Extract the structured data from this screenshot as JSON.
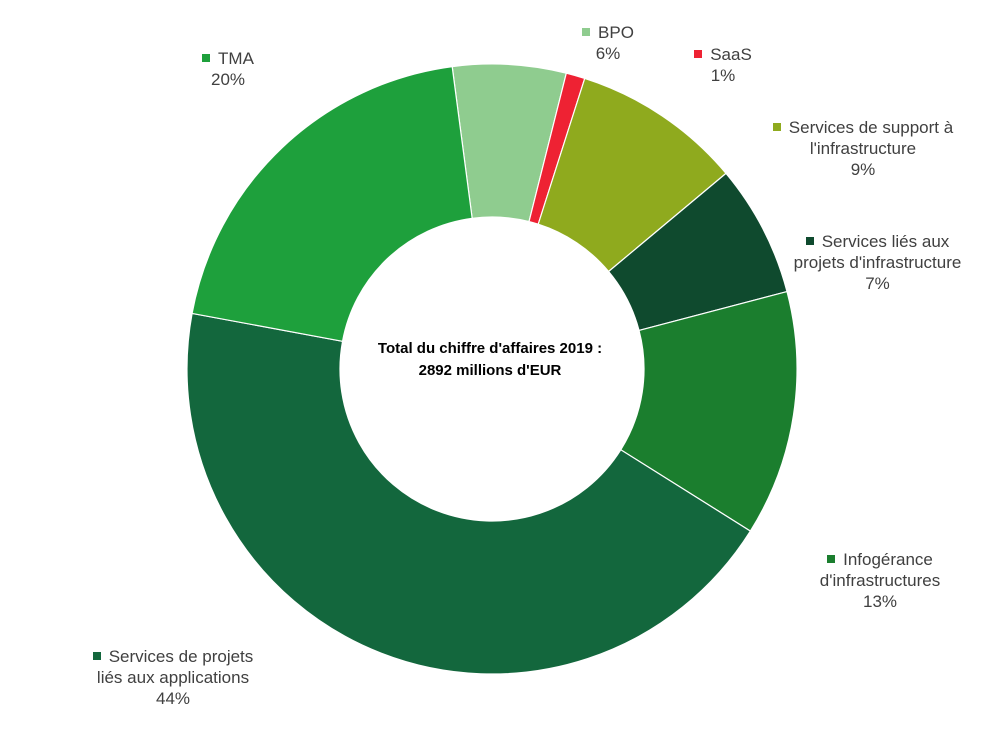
{
  "chart_data": {
    "type": "pie",
    "donut": true,
    "center_label_line1": "Total du chiffre d'affaires 2019 :",
    "center_label_line2": "2892 millions d'EUR",
    "slices": [
      {
        "name": "BPO",
        "value": 6,
        "label": "6%",
        "color": "#8fcc8f",
        "name_lines": [
          "BPO"
        ]
      },
      {
        "name": "SaaS",
        "value": 1,
        "label": "1%",
        "color": "#ee2233",
        "name_lines": [
          "SaaS"
        ]
      },
      {
        "name": "Services de support à l'infrastructure",
        "value": 9,
        "label": "9%",
        "color": "#8faa1e",
        "name_lines": [
          "Services de support à",
          "l'infrastructure"
        ]
      },
      {
        "name": "Services liés aux projets d'infrastructure",
        "value": 7,
        "label": "7%",
        "color": "#0f4a2e",
        "name_lines": [
          "Services liés aux",
          "projets d'infrastructure"
        ]
      },
      {
        "name": "Infogérance d'infrastructures",
        "value": 13,
        "label": "13%",
        "color": "#1b7e2e",
        "name_lines": [
          "Infogérance",
          "d'infrastructures"
        ]
      },
      {
        "name": "Services de projets liés aux applications",
        "value": 44,
        "label": "44%",
        "color": "#13673d",
        "name_lines": [
          "Services de projets",
          "liés aux applications"
        ]
      },
      {
        "name": "TMA",
        "value": 20,
        "label": "20%",
        "color": "#1ea03c",
        "name_lines": [
          "TMA"
        ]
      }
    ]
  }
}
